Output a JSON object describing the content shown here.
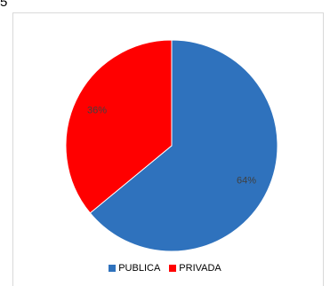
{
  "stray_text": "5",
  "chart_data": {
    "type": "pie",
    "categories": [
      "PUBLICA",
      "PRIVADA"
    ],
    "values": [
      64,
      36
    ],
    "data_labels": [
      "64%",
      "36%"
    ],
    "colors": [
      "#2f72bd",
      "#ff0000"
    ],
    "legend_position": "bottom",
    "start_angle": "12 o'clock",
    "direction": "clockwise"
  }
}
